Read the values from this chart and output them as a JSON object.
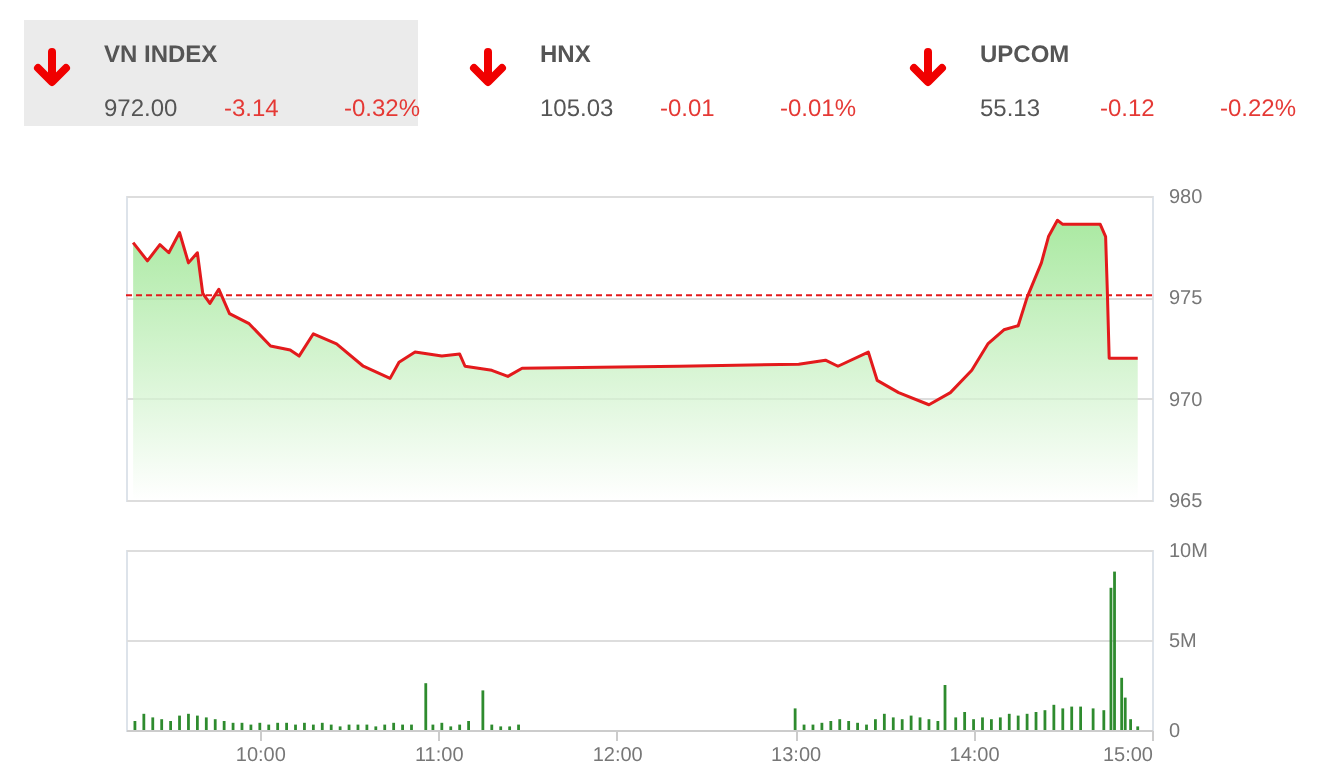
{
  "chart_data": [
    {
      "type": "other",
      "annotations": [
        "VN INDEX",
        "972.00",
        "-3.14",
        "-0.32%",
        "HNX",
        "105.03",
        "-0.01",
        "-0.01%",
        "UPCOM",
        "55.13",
        "-0.12",
        "-0.22%"
      ]
    },
    {
      "type": "area",
      "x": [
        9.29,
        9.37,
        9.44,
        9.49,
        9.55,
        9.6,
        9.65,
        9.68,
        9.72,
        9.77,
        9.83,
        9.94,
        10.06,
        10.17,
        10.22,
        10.3,
        10.43,
        10.58,
        10.73,
        10.78,
        10.87,
        11.02,
        11.12,
        11.15,
        11.3,
        11.39,
        11.47,
        12.35,
        13.02,
        13.17,
        13.24,
        13.41,
        13.46,
        13.58,
        13.75,
        13.87,
        13.99,
        14.08,
        14.17,
        14.25,
        14.3,
        14.38,
        14.42,
        14.47,
        14.5,
        14.71,
        14.74,
        14.75,
        14.76,
        14.92
      ],
      "series": [
        {
          "color": "#e31a1c",
          "values": [
            977.7,
            976.8,
            977.6,
            977.2,
            978.2,
            976.7,
            977.2,
            975.2,
            974.7,
            975.4,
            974.2,
            973.7,
            972.6,
            972.4,
            972.1,
            973.2,
            972.7,
            971.6,
            971.0,
            971.8,
            972.3,
            972.1,
            972.2,
            971.6,
            971.4,
            971.1,
            971.5,
            971.6,
            971.7,
            971.9,
            971.6,
            972.3,
            970.9,
            970.3,
            969.7,
            970.3,
            971.4,
            972.7,
            973.4,
            973.6,
            975.0,
            976.7,
            978.0,
            978.8,
            978.6,
            978.6,
            978.0,
            975.2,
            972.0,
            972.0
          ]
        }
      ],
      "xlim": [
        9.25,
        15
      ],
      "ylim": [
        965,
        980
      ],
      "yticks": [
        965,
        970,
        975,
        980
      ],
      "grid": "y",
      "tick_labels": "y",
      "ref_lines": [
        {
          "axis": "y",
          "value": 975.1,
          "color": "#e31a1c",
          "line_style": "dashed"
        }
      ]
    },
    {
      "type": "bar",
      "x": [
        9.3,
        9.35,
        9.4,
        9.45,
        9.5,
        9.55,
        9.6,
        9.65,
        9.7,
        9.75,
        9.8,
        9.85,
        9.9,
        9.95,
        10.0,
        10.05,
        10.1,
        10.15,
        10.2,
        10.25,
        10.3,
        10.35,
        10.4,
        10.45,
        10.5,
        10.55,
        10.6,
        10.65,
        10.7,
        10.75,
        10.8,
        10.85,
        10.93,
        10.97,
        11.02,
        11.07,
        11.12,
        11.17,
        11.25,
        11.3,
        11.35,
        11.4,
        11.45,
        13.0,
        13.05,
        13.1,
        13.15,
        13.2,
        13.25,
        13.3,
        13.35,
        13.4,
        13.45,
        13.5,
        13.55,
        13.6,
        13.65,
        13.7,
        13.75,
        13.8,
        13.84,
        13.9,
        13.95,
        14.0,
        14.05,
        14.1,
        14.15,
        14.2,
        14.25,
        14.3,
        14.35,
        14.4,
        14.45,
        14.5,
        14.55,
        14.6,
        14.67,
        14.73,
        14.77,
        14.79,
        14.83,
        14.85,
        14.88,
        14.92
      ],
      "series": [
        {
          "color": "#2e8b2e",
          "values": [
            0.5,
            0.9,
            0.7,
            0.6,
            0.5,
            0.8,
            0.9,
            0.8,
            0.7,
            0.6,
            0.5,
            0.4,
            0.4,
            0.3,
            0.4,
            0.3,
            0.4,
            0.4,
            0.3,
            0.4,
            0.3,
            0.4,
            0.3,
            0.2,
            0.3,
            0.3,
            0.3,
            0.2,
            0.3,
            0.4,
            0.3,
            0.3,
            2.6,
            0.3,
            0.4,
            0.2,
            0.3,
            0.5,
            2.2,
            0.3,
            0.2,
            0.2,
            0.3,
            1.2,
            0.3,
            0.3,
            0.4,
            0.5,
            0.6,
            0.5,
            0.4,
            0.3,
            0.6,
            0.9,
            0.7,
            0.6,
            0.8,
            0.7,
            0.6,
            0.5,
            2.5,
            0.7,
            1.0,
            0.6,
            0.7,
            0.6,
            0.7,
            0.9,
            0.8,
            0.9,
            1.0,
            1.1,
            1.4,
            1.2,
            1.3,
            1.3,
            1.2,
            1.1,
            7.9,
            8.8,
            2.9,
            1.8,
            0.6,
            0.2
          ]
        }
      ],
      "xlim": [
        9.25,
        15
      ],
      "xticks": [
        {
          "value": 10,
          "label": "10:00"
        },
        {
          "value": 11,
          "label": "11:00"
        },
        {
          "value": 12,
          "label": "12:00"
        },
        {
          "value": 13,
          "label": "13:00"
        },
        {
          "value": 14,
          "label": "14:00"
        },
        {
          "value": 15,
          "label": "15:00"
        }
      ],
      "ylim": [
        0,
        10
      ],
      "yticks": [
        0,
        {
          "value": 5,
          "label": "5M"
        },
        {
          "value": 10,
          "label": "10M"
        }
      ],
      "grid": "y"
    }
  ]
}
